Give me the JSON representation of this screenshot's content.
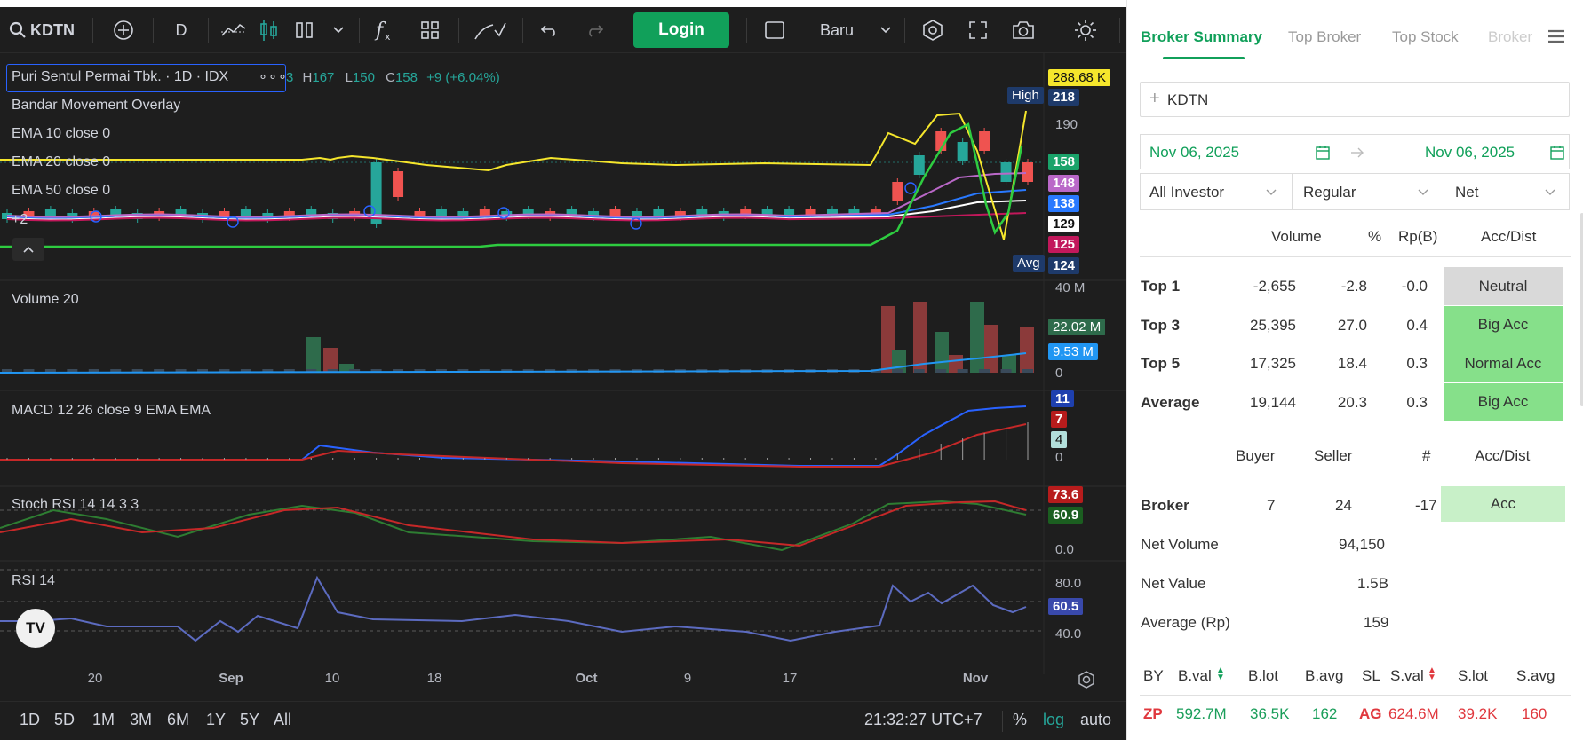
{
  "toolbar": {
    "symbol": "KDTN",
    "interval": "D",
    "login": "Login",
    "layout": "Baru"
  },
  "legend": {
    "name": "Puri Sentul Permai Tbk. · 1D · IDX",
    "o_tail": "3",
    "h_label": "H",
    "h_value": "167",
    "l_label": "L",
    "l_value": "150",
    "c_label": "C",
    "c_value": "158",
    "change": "+9 (+6.04%)"
  },
  "overlays": {
    "bandar": "Bandar Movement Overlay",
    "ema10": "EMA  10 close 0",
    "ema20": "EMA  20 close 0",
    "ema50": "EMA  50 close 0",
    "more": "+2"
  },
  "price_labels": {
    "vol_top": "288.68 K",
    "high_tag": "High",
    "high": "218",
    "p190": "190",
    "last": "158",
    "p148": "148",
    "p138": "138",
    "p129": "129",
    "p125": "125",
    "avg_tag": "Avg",
    "avg": "124"
  },
  "volume": {
    "title": "Volume 20",
    "top": "40 M",
    "v1": "22.02 M",
    "v2": "9.53 M",
    "zero": "0"
  },
  "macd": {
    "title": "MACD  12 26 close 9 EMA EMA",
    "v1": "11",
    "v2": "7",
    "v3": "4",
    "zero": "0"
  },
  "stoch": {
    "title": "Stoch RSI  14 14 3 3",
    "v1": "73.6",
    "v2": "60.9",
    "zero": "0.0"
  },
  "rsi": {
    "title": "RSI  14",
    "top": "80.0",
    "v": "60.5",
    "low": "40.0"
  },
  "xaxis": [
    "20",
    "Sep",
    "10",
    "18",
    "Oct",
    "9",
    "17",
    "Nov"
  ],
  "ranges": [
    "1D",
    "5D",
    "1M",
    "3M",
    "6M",
    "1Y",
    "5Y",
    "All"
  ],
  "clock": "21:32:27 UTC+7",
  "scale": {
    "pct": "%",
    "log": "log",
    "auto": "auto"
  },
  "colors": {
    "green": "#26a69a",
    "red": "#ef5350",
    "ema_yellow": "#f5e62c",
    "accent": "#11a05a"
  },
  "panel": {
    "tabs": [
      "Broker Summary",
      "Top Broker",
      "Top Stock",
      "Broker"
    ],
    "search": "KDTN",
    "date_from": "Nov 06, 2025",
    "date_to": "Nov 06, 2025",
    "investor": "All Investor",
    "market": "Regular",
    "mode": "Net",
    "sum_headers": [
      "Volume",
      "%",
      "Rp(B)",
      "Acc/Dist"
    ],
    "summary": [
      {
        "label": "Top 1",
        "volume": "-2,655",
        "pct": "-2.8",
        "rp": "-0.0",
        "status": "Neutral"
      },
      {
        "label": "Top 3",
        "volume": "25,395",
        "pct": "27.0",
        "rp": "0.4",
        "status": "Big Acc"
      },
      {
        "label": "Top 5",
        "volume": "17,325",
        "pct": "18.4",
        "rp": "0.3",
        "status": "Normal Acc"
      },
      {
        "label": "Average",
        "volume": "19,144",
        "pct": "20.3",
        "rp": "0.3",
        "status": "Big Acc"
      }
    ],
    "broker_headers": [
      "Buyer",
      "Seller",
      "#",
      "Acc/Dist"
    ],
    "broker": {
      "label": "Broker",
      "buyer": "7",
      "seller": "24",
      "net": "-17",
      "status": "Acc"
    },
    "net_volume_label": "Net Volume",
    "net_volume": "94,150",
    "net_value_label": "Net Value",
    "net_value": "1.5B",
    "avg_label": "Average (Rp)",
    "avg_value": "159",
    "table_headers": [
      "BY",
      "B.val",
      "B.lot",
      "B.avg",
      "SL",
      "S.val",
      "S.lot",
      "S.avg"
    ],
    "rows": [
      {
        "by": "ZP",
        "bval": "592.7M",
        "blot": "36.5K",
        "bavg": "162",
        "sl": "AG",
        "sval": "624.6M",
        "slot": "39.2K",
        "savg": "160"
      }
    ]
  }
}
